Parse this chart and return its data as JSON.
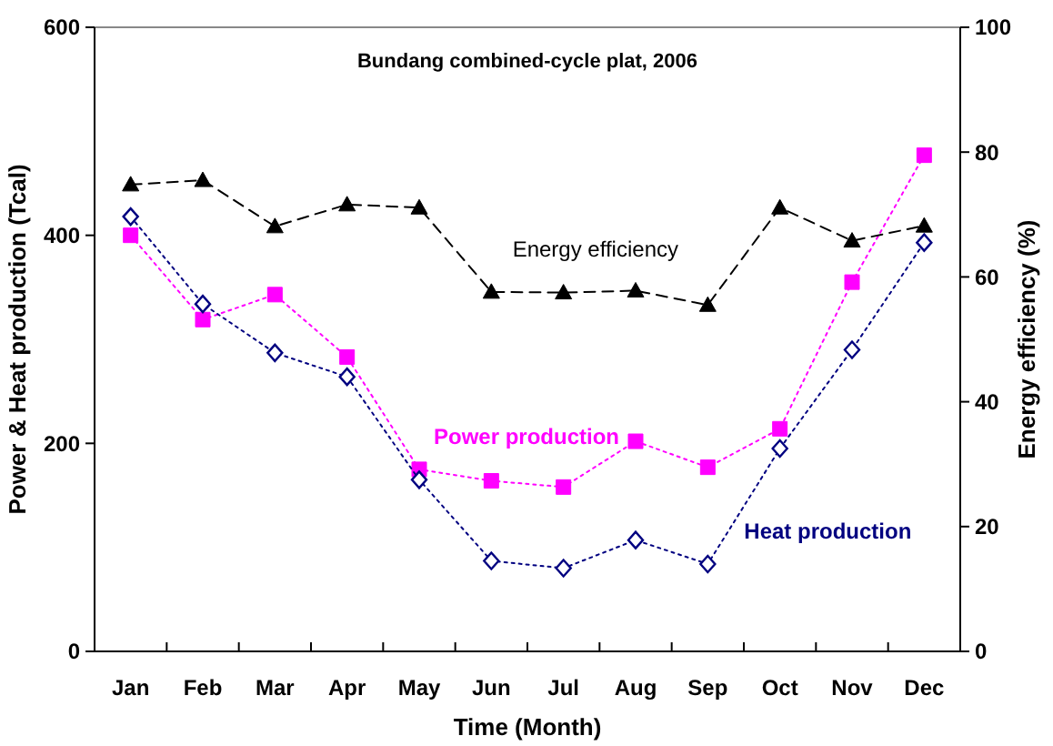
{
  "chart_data": {
    "type": "line",
    "title": "Bundang combined-cycle plat, 2006",
    "xlabel": "Time (Month)",
    "ylabel": "Power & Heat production (Tcal)",
    "y2label": "Energy efficiency (%)",
    "categories": [
      "Jan",
      "Feb",
      "Mar",
      "Apr",
      "May",
      "Jun",
      "Jul",
      "Aug",
      "Sep",
      "Oct",
      "Nov",
      "Dec"
    ],
    "ylim": [
      0,
      600
    ],
    "yticks": [
      0,
      200,
      400,
      600
    ],
    "y2lim": [
      0,
      100
    ],
    "y2ticks": [
      0,
      20,
      40,
      60,
      80,
      100
    ],
    "grid": false,
    "series": [
      {
        "name": "Power production",
        "color": "#ff00ff",
        "marker": "square",
        "line_style": "dotted",
        "values": [
          400,
          319,
          343,
          283,
          175,
          164,
          158,
          202,
          177,
          214,
          355,
          477
        ]
      },
      {
        "name": "Heat production",
        "color": "#000080",
        "marker": "diamond",
        "line_style": "dotted",
        "values": [
          418,
          334,
          287,
          264,
          165,
          87,
          80,
          107,
          84,
          195,
          290,
          393
        ]
      },
      {
        "name": "Energy efficiency",
        "color": "#000000",
        "marker": "triangle",
        "line_style": "dashed",
        "axis": "y2",
        "values": [
          74.8,
          75.5,
          68.1,
          71.6,
          71.1,
          57.6,
          57.5,
          57.8,
          55.5,
          71.1,
          65.8,
          68.2
        ]
      }
    ]
  }
}
